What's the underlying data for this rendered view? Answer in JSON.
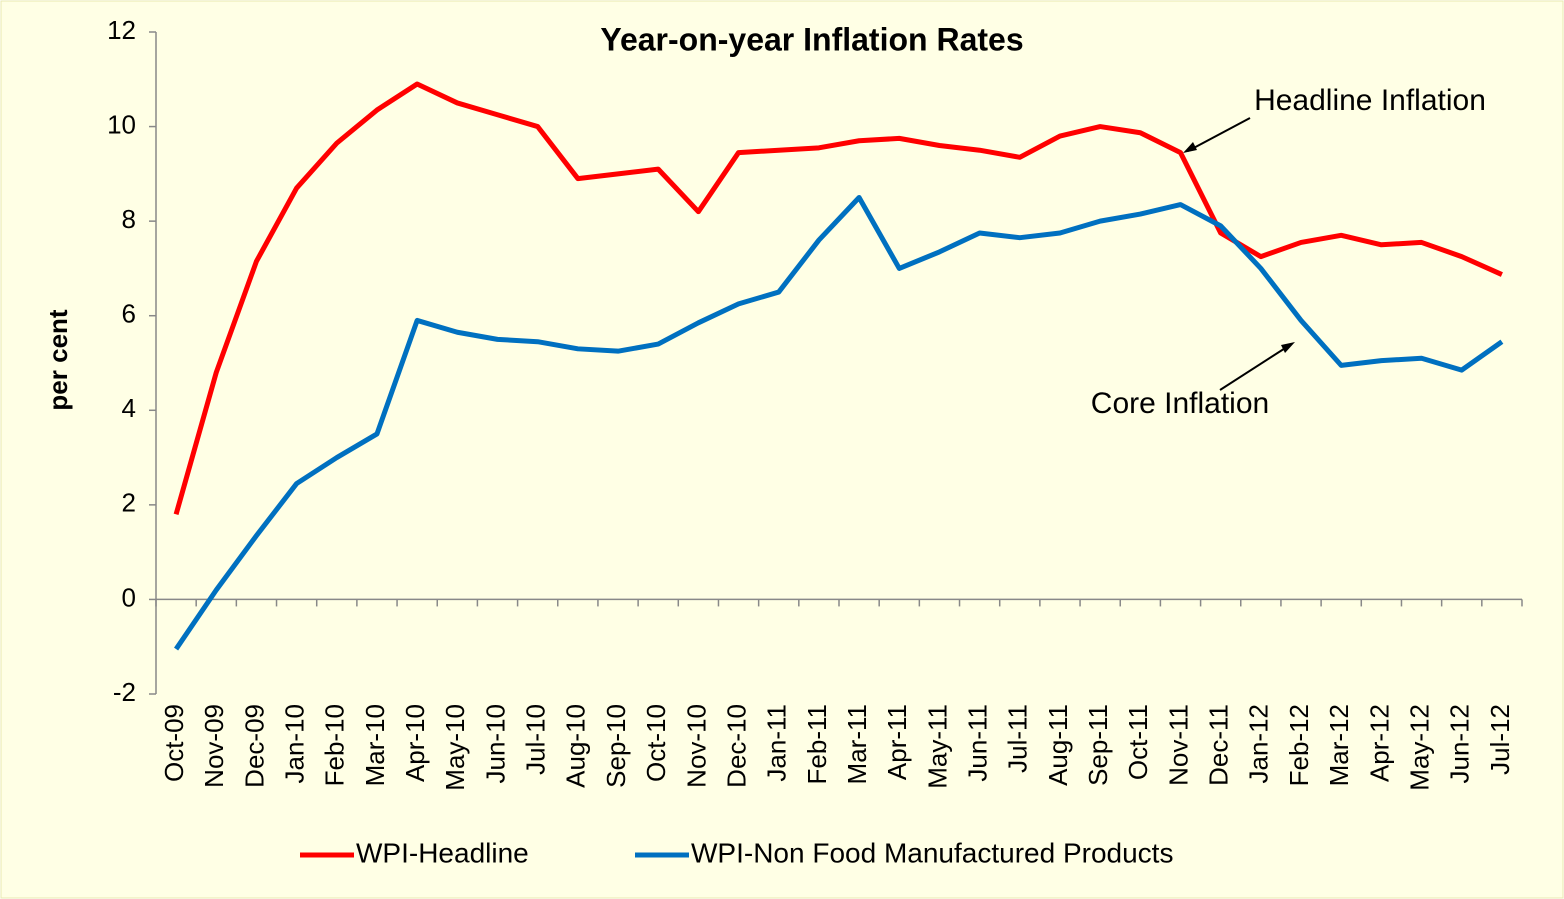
{
  "chart_data": {
    "type": "line",
    "title": "Year-on-year Inflation Rates",
    "ylabel": "per cent",
    "categories": [
      "Oct-09",
      "Nov-09",
      "Dec-09",
      "Jan-10",
      "Feb-10",
      "Mar-10",
      "Apr-10",
      "May-10",
      "Jun-10",
      "Jul-10",
      "Aug-10",
      "Sep-10",
      "Oct-10",
      "Nov-10",
      "Dec-10",
      "Jan-11",
      "Feb-11",
      "Mar-11",
      "Apr-11",
      "May-11",
      "Jun-11",
      "Jul-11",
      "Aug-11",
      "Sep-11",
      "Oct-11",
      "Nov-11",
      "Dec-11",
      "Jan-12",
      "Feb-12",
      "Mar-12",
      "Apr-12",
      "May-12",
      "Jun-12",
      "Jul-12"
    ],
    "series": [
      {
        "name": "WPI-Headline",
        "color": "#ff0000",
        "values": [
          1.8,
          4.8,
          7.15,
          8.7,
          9.65,
          10.35,
          10.9,
          10.5,
          10.25,
          10.0,
          8.9,
          9.0,
          9.1,
          8.2,
          9.45,
          9.5,
          9.55,
          9.7,
          9.75,
          9.6,
          9.5,
          9.35,
          9.8,
          10.0,
          9.87,
          9.45,
          7.75,
          7.25,
          7.55,
          7.7,
          7.5,
          7.55,
          7.25,
          6.87
        ]
      },
      {
        "name": "WPI-Non Food Manufactured Products",
        "color": "#0070c0",
        "values": [
          -1.05,
          0.2,
          1.35,
          2.45,
          3.0,
          3.5,
          5.9,
          5.65,
          5.5,
          5.45,
          5.3,
          5.25,
          5.4,
          5.85,
          6.25,
          6.5,
          7.6,
          8.5,
          7.0,
          7.35,
          7.75,
          7.65,
          7.75,
          8.0,
          8.15,
          8.35,
          7.9,
          7.0,
          5.9,
          4.95,
          5.05,
          5.1,
          4.85,
          5.45
        ]
      }
    ],
    "annotations": [
      "Headline Inflation",
      "Core Inflation"
    ],
    "ylim": [
      -2,
      12
    ],
    "yticks": [
      -2,
      0,
      2,
      4,
      6,
      8,
      10,
      12
    ],
    "legend": "bottom"
  }
}
